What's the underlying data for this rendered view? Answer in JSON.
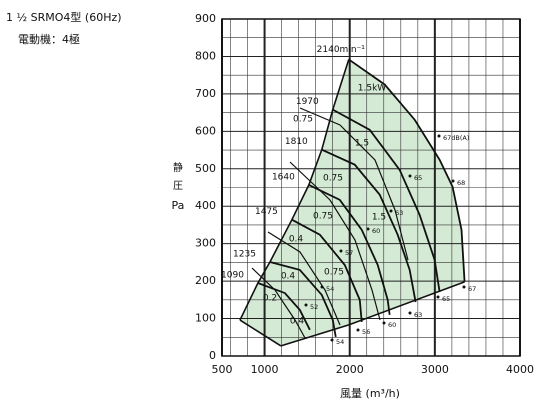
{
  "chart_data": {
    "type": "line",
    "title": "1 ½ SRMO4型 (60Hz)",
    "subtitle": "電動機：4極",
    "y_label": [
      "静",
      "圧",
      "Pa"
    ],
    "x_label": "風量 (m³/h)",
    "xlim": [
      500,
      4000
    ],
    "xticks": [
      500,
      1000,
      2000,
      3000,
      4000
    ],
    "ylim": [
      0,
      900
    ],
    "yticks": [
      0,
      100,
      200,
      300,
      400,
      500,
      600,
      700,
      800,
      900
    ],
    "grid": true,
    "fill_color": "#d4ead4",
    "series": [
      {
        "name": "2140min⁻¹",
        "x": [
          1989,
          2411,
          2763,
          3056,
          3208,
          3313,
          3349
        ],
        "y": [
          792,
          725,
          631,
          524,
          452,
          337,
          198
        ]
      },
      {
        "name": "1970",
        "x": [
          1801,
          2235,
          2587,
          2821,
          2997,
          3056
        ],
        "y": [
          658,
          604,
          497,
          377,
          257,
          171
        ]
      },
      {
        "name": "1810",
        "x": [
          1672,
          2059,
          2352,
          2563,
          2704,
          2774
        ],
        "y": [
          551,
          511,
          431,
          324,
          230,
          144
        ]
      },
      {
        "name": "1640",
        "x": [
          1520,
          1883,
          2141,
          2329,
          2446,
          2469
        ],
        "y": [
          457,
          417,
          337,
          243,
          150,
          110
        ]
      },
      {
        "name": "1475",
        "x": [
          1321,
          1649,
          1942,
          2118,
          2141
        ],
        "y": [
          364,
          324,
          243,
          150,
          91
        ]
      },
      {
        "name": "1235",
        "x": [
          1063,
          1414,
          1672,
          1801,
          1836
        ],
        "y": [
          251,
          230,
          163,
          96,
          51
        ]
      },
      {
        "name": "1090",
        "x": [
          922,
          1239,
          1414,
          1532
        ],
        "y": [
          195,
          168,
          123,
          70
        ]
      }
    ],
    "boundaries": [
      {
        "x": [
          711,
          922,
          1063,
          1321,
          1520,
          1672,
          1801,
          1989
        ],
        "y": [
          96,
          195,
          251,
          364,
          457,
          551,
          658,
          792
        ]
      },
      {
        "x": [
          711,
          1192
        ],
        "y": [
          96,
          27
        ]
      },
      {
        "x": [
          1192,
          1989,
          3349
        ],
        "y": [
          27,
          83,
          198
        ]
      }
    ],
    "power_labels": [
      "1.5kW",
      "0.75",
      "1.5",
      "0.75",
      "0.75",
      "1.5",
      "0.4",
      "0.75",
      "0.4",
      "0.2",
      "0.4"
    ],
    "noise_labels": [
      "67dB(A)",
      "68",
      "65",
      "63",
      "60",
      "57",
      "54",
      "52",
      "56",
      "54",
      "60",
      "63",
      "65",
      "67"
    ]
  }
}
